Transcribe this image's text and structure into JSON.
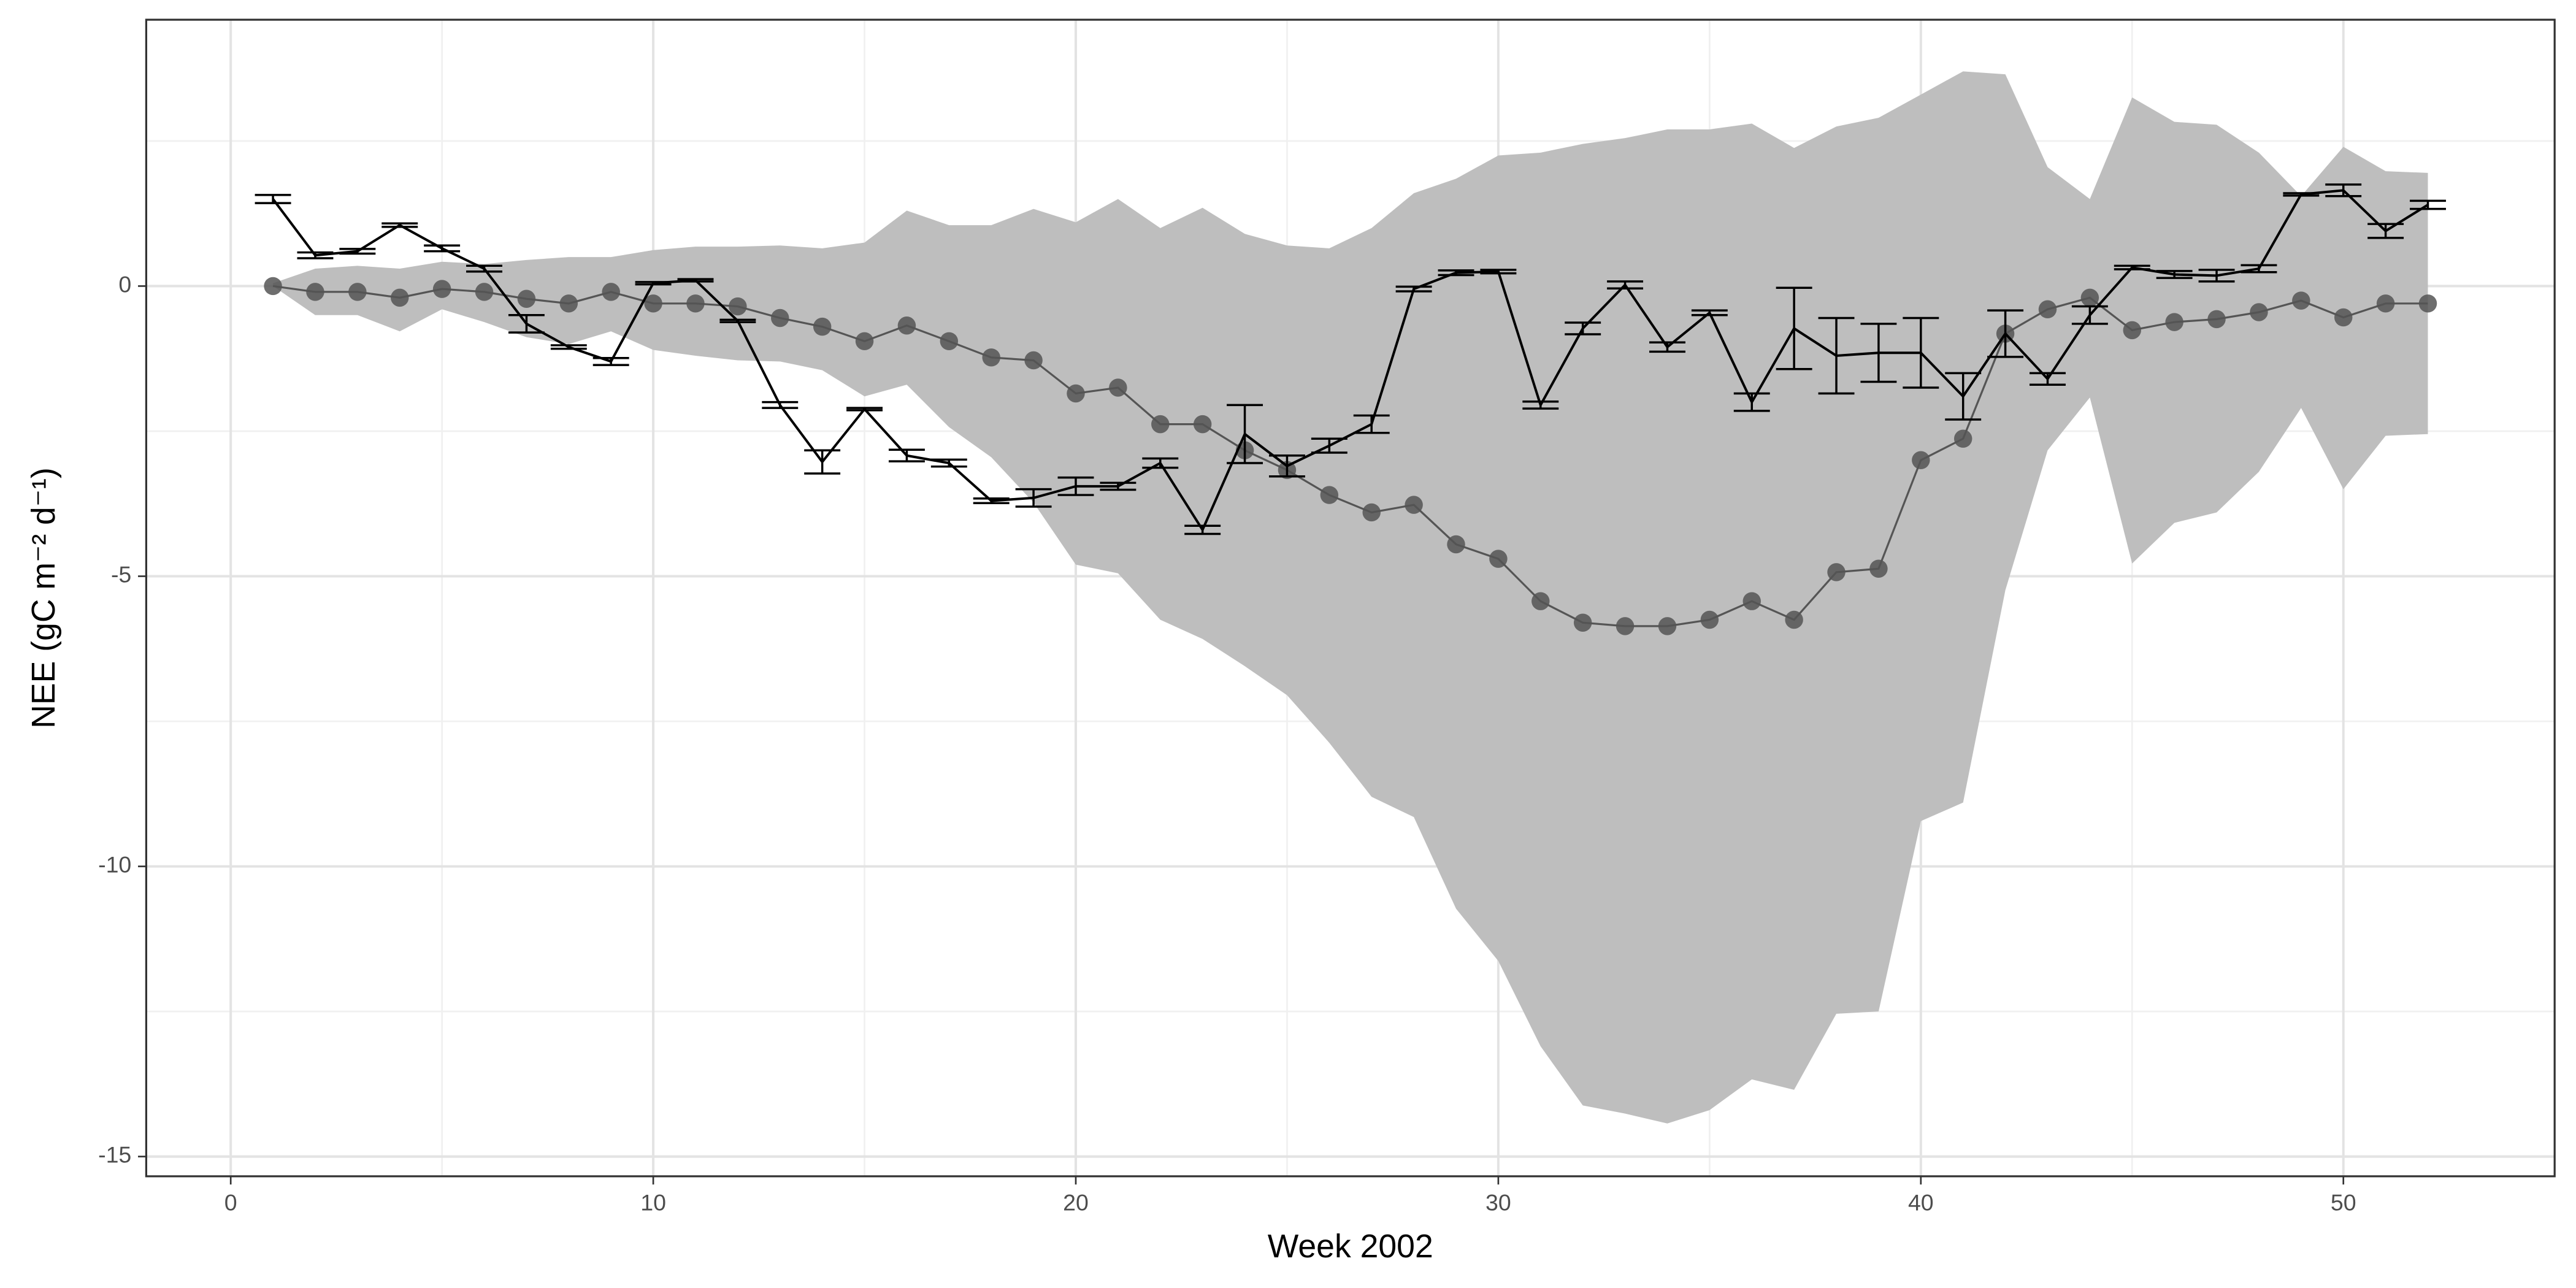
{
  "chart_data": {
    "type": "line",
    "xlabel": "Week 2002",
    "ylabel": "NEE (gC m⁻² d⁻¹)",
    "x": [
      1,
      2,
      3,
      4,
      5,
      6,
      7,
      8,
      9,
      10,
      11,
      12,
      13,
      14,
      15,
      16,
      17,
      18,
      19,
      20,
      21,
      22,
      23,
      24,
      25,
      26,
      27,
      28,
      29,
      30,
      31,
      32,
      33,
      34,
      35,
      36,
      37,
      38,
      39,
      40,
      41,
      42,
      43,
      44,
      45,
      46,
      47,
      48,
      49,
      50,
      51,
      52
    ],
    "ribbon": {
      "color": "#bebebe",
      "upper": [
        0.05,
        0.3,
        0.35,
        0.3,
        0.42,
        0.38,
        0.45,
        0.5,
        0.5,
        0.62,
        0.68,
        0.68,
        0.7,
        0.65,
        0.75,
        1.3,
        1.05,
        1.05,
        1.33,
        1.1,
        1.5,
        1.0,
        1.35,
        0.9,
        0.7,
        0.65,
        1.0,
        1.6,
        1.85,
        2.25,
        2.3,
        2.45,
        2.55,
        2.7,
        2.7,
        2.8,
        2.38,
        2.75,
        2.9,
        3.3,
        3.7,
        3.65,
        2.05,
        1.5,
        3.25,
        2.83,
        2.78,
        2.3,
        1.55,
        2.4,
        1.98,
        1.95
      ],
      "lower": [
        0,
        -0.5,
        -0.5,
        -0.78,
        -0.4,
        -0.62,
        -0.88,
        -1.0,
        -0.78,
        -1.1,
        -1.2,
        -1.28,
        -1.3,
        -1.45,
        -1.9,
        -1.7,
        -2.43,
        -2.95,
        -3.73,
        -4.8,
        -4.95,
        -5.75,
        -6.08,
        -6.55,
        -7.05,
        -7.87,
        -8.8,
        -9.15,
        -10.73,
        -11.63,
        -13.1,
        -14.12,
        -14.26,
        -14.43,
        -14.2,
        -13.67,
        -13.85,
        -12.54,
        -12.5,
        -9.22,
        -8.9,
        -5.24,
        -2.83,
        -1.92,
        -4.78,
        -4.08,
        -3.9,
        -3.2,
        -2.1,
        -3.5,
        -2.58,
        -2.55
      ]
    },
    "series": [
      {
        "color": "#555555",
        "values": [
          0.0,
          -0.1,
          -0.1,
          -0.2,
          -0.05,
          -0.1,
          -0.22,
          -0.3,
          -0.1,
          -0.3,
          -0.3,
          -0.35,
          -0.55,
          -0.7,
          -0.95,
          -0.68,
          -0.95,
          -1.23,
          -1.28,
          -1.85,
          -1.75,
          -2.38,
          -2.38,
          -2.83,
          -3.17,
          -3.6,
          -3.9,
          -3.77,
          -4.45,
          -4.7,
          -5.43,
          -5.8,
          -5.86,
          -5.86,
          -5.75,
          -5.43,
          -5.75,
          -4.93,
          -4.87,
          -3.0,
          -2.63,
          -0.82,
          -0.4,
          -0.2,
          -0.76,
          -0.62,
          -0.57,
          -0.45,
          -0.25,
          -0.54,
          -0.3,
          -0.3
        ]
      },
      {
        "color": "#000000",
        "values": [
          1.5,
          0.53,
          0.6,
          1.05,
          0.65,
          0.3,
          -0.65,
          -1.05,
          -1.3,
          0.05,
          0.1,
          -0.6,
          -2.05,
          -3.03,
          -2.12,
          -2.92,
          -3.05,
          -3.7,
          -3.65,
          -3.45,
          -3.45,
          -3.05,
          -4.2,
          -2.55,
          -3.1,
          -2.75,
          -2.38,
          -0.05,
          0.23,
          0.25,
          -2.05,
          -0.73,
          0.02,
          -1.05,
          -0.46,
          -2.0,
          -0.73,
          -1.2,
          -1.15,
          -1.15,
          -1.9,
          -0.82,
          -1.6,
          -0.5,
          0.32,
          0.2,
          0.18,
          0.3,
          1.58,
          1.65,
          0.95,
          1.4
        ],
        "errors": [
          0.07,
          0.05,
          0.04,
          0.03,
          0.05,
          0.05,
          0.15,
          0.03,
          0.06,
          0.02,
          0.02,
          0.02,
          0.05,
          0.2,
          0.02,
          0.1,
          0.06,
          0.04,
          0.15,
          0.15,
          0.06,
          0.08,
          0.07,
          0.5,
          0.18,
          0.12,
          0.15,
          0.04,
          0.04,
          0.03,
          0.06,
          0.1,
          0.06,
          0.08,
          0.04,
          0.15,
          0.7,
          0.65,
          0.5,
          0.6,
          0.4,
          0.4,
          0.1,
          0.15,
          0.03,
          0.06,
          0.1,
          0.06,
          0.02,
          0.1,
          0.12,
          0.07
        ]
      }
    ],
    "xlim": [
      -2,
      55
    ],
    "xticks": [
      0,
      10,
      20,
      30,
      40,
      50
    ],
    "ylim": [
      -15.34,
      4.59
    ],
    "yticks": [
      -15,
      -10,
      -5,
      0
    ],
    "grid": true
  }
}
